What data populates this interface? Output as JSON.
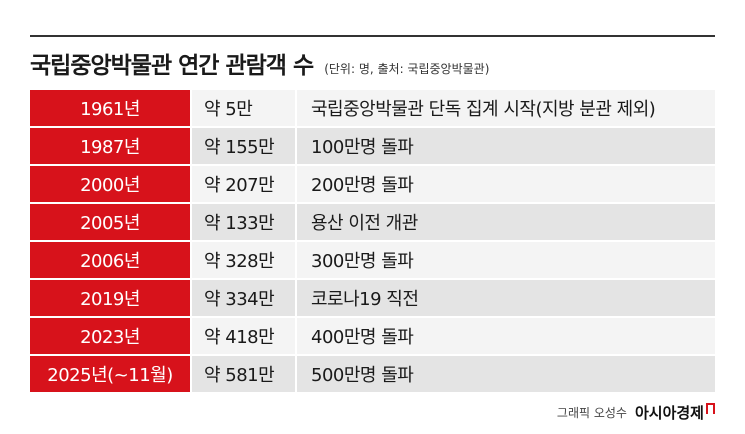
{
  "header": {
    "title": "국립중앙박물관 연간 관람객 수",
    "subtitle": "(단위: 명, 출처: 국립중앙박물관)"
  },
  "table": {
    "rows": [
      [
        "1961년",
        "약 5만",
        "국립중앙박물관 단독 집계 시작(지방 분관 제외)"
      ],
      [
        "1987년",
        "약 155만",
        "100만명 돌파"
      ],
      [
        "2000년",
        "약 207만",
        "200만명 돌파"
      ],
      [
        "2005년",
        "약 133만",
        "용산 이전 개관"
      ],
      [
        "2006년",
        "약 328만",
        "300만명 돌파"
      ],
      [
        "2019년",
        "약 334만",
        "코로나19 직전"
      ],
      [
        "2023년",
        "약 418만",
        "400만명 돌파"
      ],
      [
        "2025년(~11월)",
        "약 581만",
        "500만명 돌파"
      ]
    ]
  },
  "footer": {
    "credit": "그래픽 오성수",
    "brand": "아시아경제"
  }
}
